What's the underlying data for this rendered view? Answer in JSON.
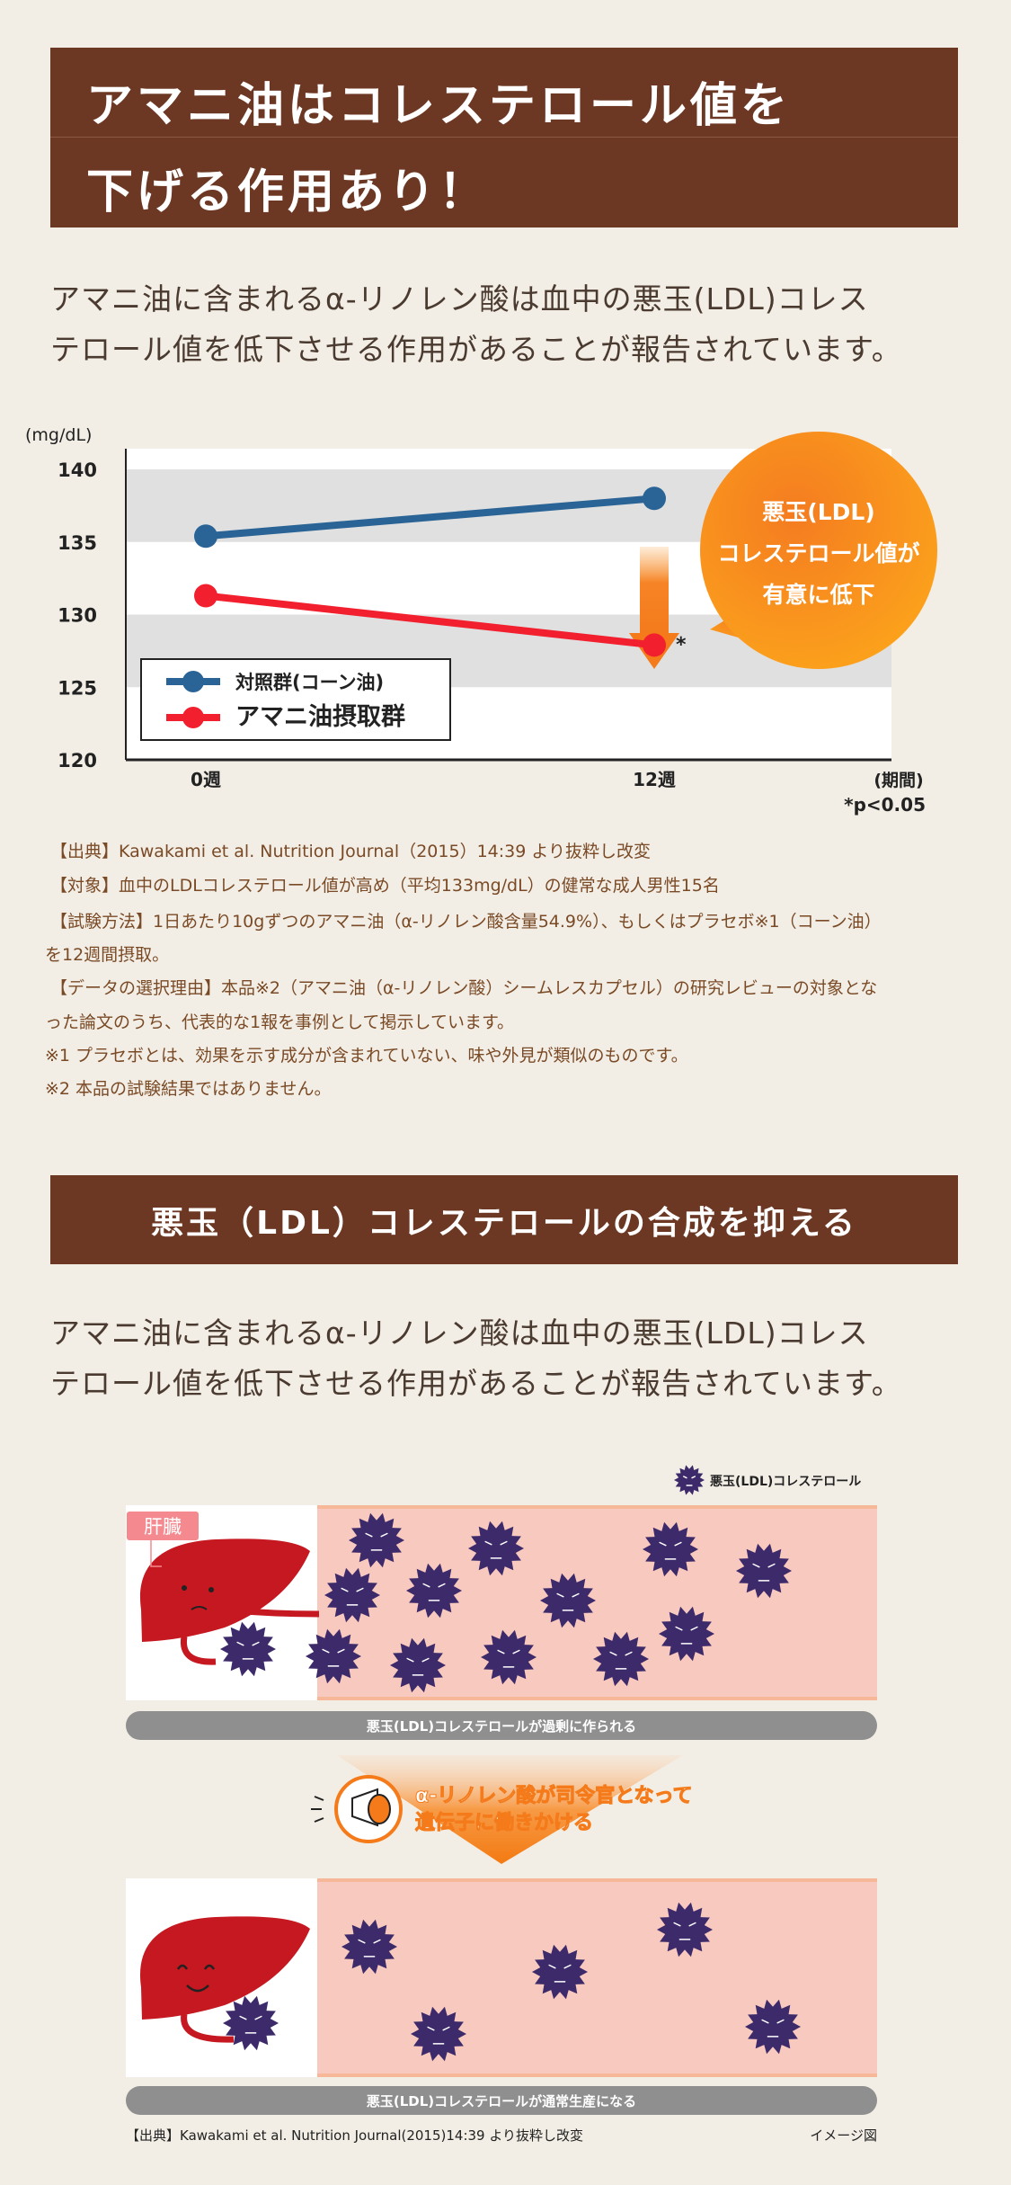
{
  "section1": {
    "title_line1": "アマニ油はコレステロール値を",
    "title_line2": "下げる作用あり！",
    "intro_line1": "アマニ油に含まれるα-リノレン酸は血中の悪玉(LDL)コレス",
    "intro_line2": "テロール値を低下させる作用があることが報告されています。"
  },
  "chart_data": {
    "type": "line",
    "ylabel": "(mg/dL)",
    "xlabel": "(期間)",
    "categories": [
      "0週",
      "12週"
    ],
    "ylim": [
      120,
      140
    ],
    "yticks": [
      140,
      135,
      130,
      125,
      120
    ],
    "series": [
      {
        "name": "対照群(コーン油)",
        "values": [
          135.4,
          138.0
        ],
        "color": "#2a6496"
      },
      {
        "name": "アマニ油摂取群",
        "values": [
          131.3,
          127.9
        ],
        "color": "#f2202e"
      }
    ],
    "annotation_mark": "*",
    "significance": "*p<0.05",
    "callout": [
      "悪玉(LDL)",
      "コレステロール値が",
      "有意に低下"
    ],
    "grid": "alternating-bands",
    "legend": "bottom-left"
  },
  "notes": [
    "【出典】Kawakami et al. Nutrition Journal（2015）14:39 より抜粋し改変",
    "【対象】血中のLDLコレステロール値が高め（平均133mg/dL）の健常な成人男性15名",
    "【試験方法】1日あたり10gずつのアマニ油（α-リノレン酸含量54.9%）、もしくはプラセボ※1（コーン油）",
    "を12週間摂取。",
    "【データの選択理由】本品※2（アマニ油（α-リノレン酸）シームレスカプセル）の研究レビューの対象とな",
    "った論文のうち、代表的な1報を事例として掲示しています。",
    "※1 プラセボとは、効果を示す成分が含まれていない、味や外見が類似のものです。",
    "※2 本品の試験結果ではありません。"
  ],
  "section2": {
    "title": "悪玉（LDL）コレステロールの合成を抑える",
    "intro_line1": "アマニ油に含まれるα-リノレン酸は血中の悪玉(LDL)コレス",
    "intro_line2": "テロール値を低下させる作用があることが報告されています。"
  },
  "illustration": {
    "legend": "悪玉(LDL)コレステロール",
    "liver_label": "肝臓",
    "caption_top": "悪玉(LDL)コレステロールが過剰に作られる",
    "message_line1": "α-リノレン酸が司令官となって",
    "message_line2": "遺伝子に働きかける",
    "caption_bottom": "悪玉(LDL)コレステロールが通常生産になる",
    "source": "【出典】Kawakami et al. Nutrition Journal(2015)14:39 より抜粋し改変",
    "image_note": "イメージ図"
  }
}
